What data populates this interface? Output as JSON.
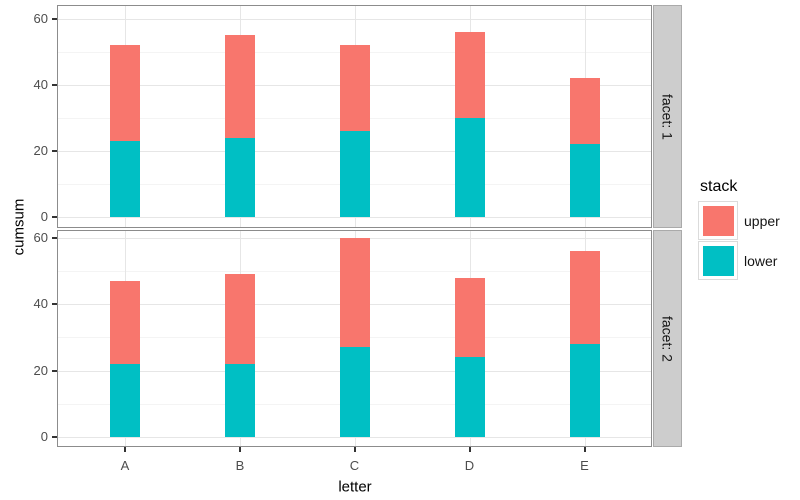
{
  "chart_data": {
    "type": "bar",
    "stacked": true,
    "title": "",
    "xlabel": "letter",
    "ylabel": "cumsum",
    "categories": [
      "A",
      "B",
      "C",
      "D",
      "E"
    ],
    "ylim": [
      0,
      60
    ],
    "yticks": [
      0,
      20,
      40,
      60
    ],
    "yticks_minor": [
      10,
      30,
      50
    ],
    "grid": true,
    "facets": [
      {
        "label": "facet: 1",
        "series": [
          {
            "name": "lower",
            "values": [
              23,
              24,
              26,
              30,
              22
            ]
          },
          {
            "name": "upper",
            "values": [
              29,
              31,
              26,
              26,
              20
            ]
          }
        ],
        "totals": [
          52,
          55,
          52,
          56,
          42
        ]
      },
      {
        "label": "facet: 2",
        "series": [
          {
            "name": "lower",
            "values": [
              22,
              22,
              27,
              24,
              28
            ]
          },
          {
            "name": "upper",
            "values": [
              25,
              27,
              33,
              24,
              28
            ]
          }
        ],
        "totals": [
          47,
          49,
          60,
          48,
          56
        ]
      }
    ],
    "legend": {
      "title": "stack",
      "position": "right",
      "entries": [
        {
          "label": "upper",
          "color": "#F8766D"
        },
        {
          "label": "lower",
          "color": "#00BFC4"
        }
      ]
    },
    "colors": {
      "upper": "#F8766D",
      "lower": "#00BFC4",
      "strip_fill": "#CDCDCD",
      "panel_border": "#8C8C8C",
      "grid_major": "#E6E6E6",
      "grid_minor": "#F4F4F4",
      "tick_text": "#4D4D4D"
    }
  }
}
